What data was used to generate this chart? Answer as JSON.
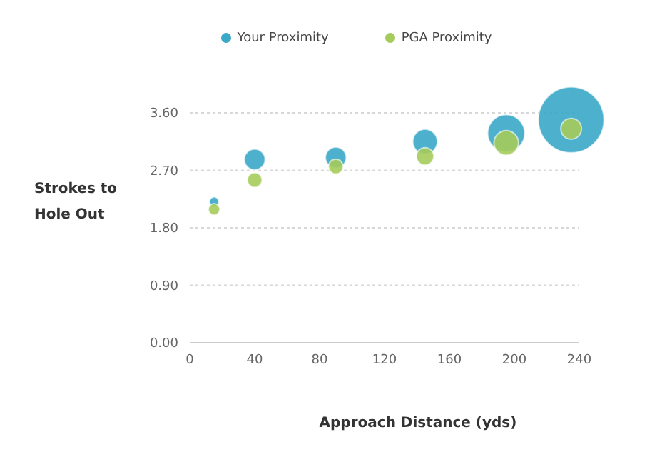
{
  "chart_data": {
    "type": "bubble",
    "xlabel": "Approach Distance (yds)",
    "ylabel": "Strokes to Hole Out",
    "x": [
      15,
      40,
      90,
      145,
      195,
      235
    ],
    "series": [
      {
        "name": "Your Proximity",
        "color": "#3aa9c8",
        "values": [
          2.21,
          2.87,
          2.9,
          3.15,
          3.28,
          3.49
        ],
        "sizes": [
          0.02,
          0.1,
          0.1,
          0.14,
          0.32,
          1
        ]
      },
      {
        "name": "PGA Proximity",
        "color": "#a5cc5b",
        "values": [
          2.09,
          2.55,
          2.76,
          2.92,
          3.13,
          3.35
        ],
        "sizes": [
          0.03,
          0.05,
          0.05,
          0.07,
          0.14,
          0.1
        ]
      }
    ],
    "xlim": [
      0,
      240
    ],
    "xticks": [
      0,
      40,
      80,
      120,
      160,
      200,
      240
    ],
    "ylim": [
      0,
      3.6
    ],
    "yticks": [
      {
        "value": 0,
        "label": "0.00"
      },
      {
        "value": 0.9,
        "label": "0.90"
      },
      {
        "value": 1.8,
        "label": "1.80"
      },
      {
        "value": 2.7,
        "label": "2.70"
      },
      {
        "value": 3.6,
        "label": "3.60"
      }
    ],
    "grid": "y",
    "legend": "top",
    "marker": "circle"
  }
}
